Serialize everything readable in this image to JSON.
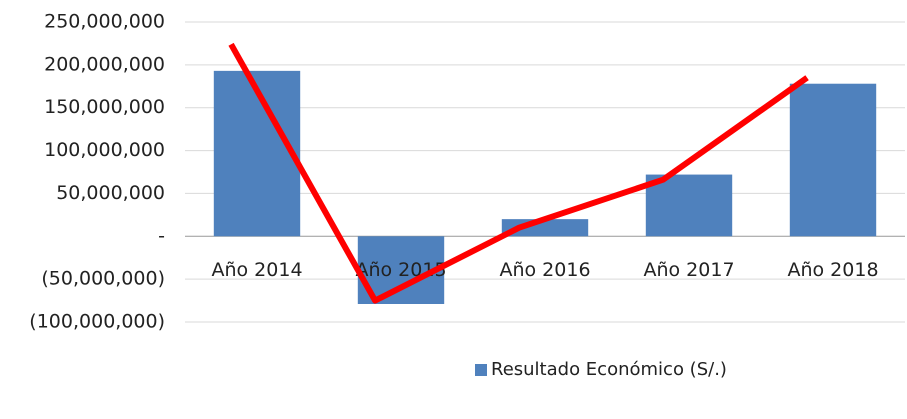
{
  "chart_data": {
    "type": "bar",
    "categories": [
      "Año 2014",
      "Año 2015",
      "Año 2016",
      "Año 2017",
      "Año 2018"
    ],
    "series": [
      {
        "name": "Resultado Económico (S/.)",
        "type": "bar",
        "color": "#4f81bd",
        "values": [
          193000000,
          -79000000,
          20000000,
          72000000,
          178000000
        ]
      },
      {
        "type": "line",
        "color": "#ff0000",
        "values": [
          224000000,
          -75000000,
          10000000,
          66000000,
          185000000
        ]
      }
    ],
    "ylim": [
      -100000000,
      250000000
    ],
    "yticks": [
      {
        "value": 250000000,
        "label": "250,000,000"
      },
      {
        "value": 200000000,
        "label": "200,000,000"
      },
      {
        "value": 150000000,
        "label": "150,000,000"
      },
      {
        "value": 100000000,
        "label": "100,000,000"
      },
      {
        "value": 50000000,
        "label": "50,000,000"
      },
      {
        "value": 0,
        "label": "-"
      },
      {
        "value": -50000000,
        "label": "(50,000,000)"
      },
      {
        "value": -100000000,
        "label": "(100,000,000)"
      }
    ],
    "grid": true
  }
}
